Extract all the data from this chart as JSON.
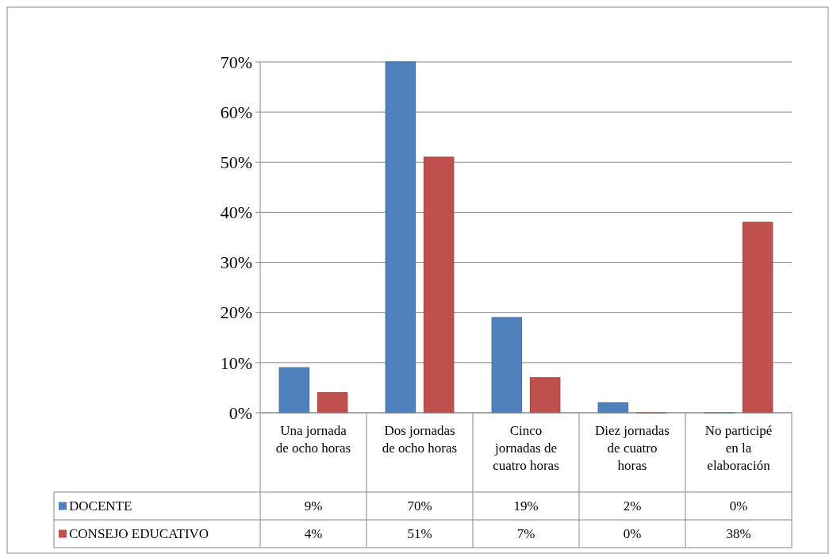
{
  "chart_data": {
    "type": "bar",
    "categories": [
      "Una jornada de ocho horas",
      "Dos jornadas de ocho horas",
      "Cinco jornadas de cuatro horas",
      "Diez jornadas de cuatro horas",
      "No participé en la elaboración"
    ],
    "series": [
      {
        "name": "DOCENTE",
        "color": "#4f81bd",
        "values": [
          9,
          70,
          19,
          2,
          0
        ],
        "value_labels": [
          "9%",
          "70%",
          "19%",
          "2%",
          "0%"
        ]
      },
      {
        "name": "CONSEJO EDUCATIVO",
        "color": "#c0504d",
        "values": [
          4,
          51,
          7,
          0,
          38
        ],
        "value_labels": [
          "4%",
          "51%",
          "7%",
          "0%",
          "38%"
        ]
      }
    ],
    "ylim": [
      0,
      70
    ],
    "yticks": [
      {
        "value": 0,
        "label": "0%"
      },
      {
        "value": 10,
        "label": "10%"
      },
      {
        "value": 20,
        "label": "20%"
      },
      {
        "value": 30,
        "label": "30%"
      },
      {
        "value": 40,
        "label": "40%"
      },
      {
        "value": 50,
        "label": "50%"
      },
      {
        "value": 60,
        "label": "60%"
      },
      {
        "value": 70,
        "label": "70%"
      }
    ],
    "grid": "y",
    "legend": "bottom"
  }
}
